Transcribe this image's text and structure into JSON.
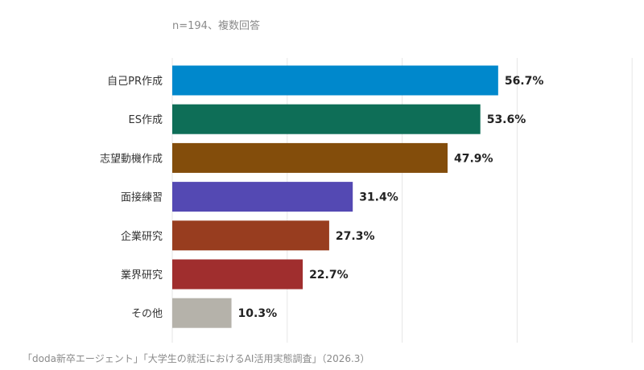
{
  "note": "n=194、複数回答",
  "source": "「doda新卒エージェント」「大学生の就活におけるAI活用実態調査」（2026.3）",
  "chart_data": {
    "type": "bar",
    "orientation": "horizontal",
    "title": "",
    "xlabel": "",
    "ylabel": "",
    "xlim": [
      0,
      100
    ],
    "grid": true,
    "unit": "%",
    "categories": [
      "自己PR作成",
      "ES作成",
      "志望動機作成",
      "面接練習",
      "企業研究",
      "業界研究",
      "その他"
    ],
    "values": [
      56.7,
      53.6,
      47.9,
      31.4,
      27.3,
      22.7,
      10.3
    ],
    "value_labels": [
      "56.7%",
      "53.6%",
      "47.9%",
      "31.4%",
      "27.3%",
      "22.7%",
      "10.3%"
    ],
    "colors": [
      "#0088cc",
      "#0e6e57",
      "#834d0b",
      "#5449b3",
      "#983d1f",
      "#a02e2e",
      "#b5b2aa"
    ],
    "grid_color": "#e6e6e6"
  }
}
